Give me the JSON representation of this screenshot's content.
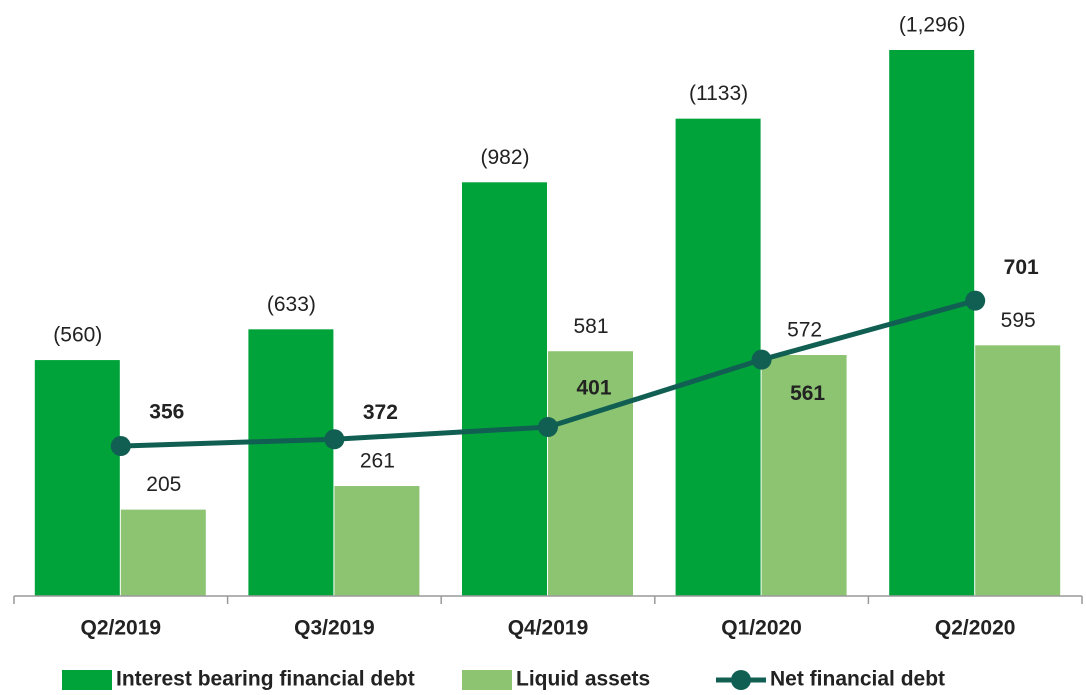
{
  "chart_data": {
    "type": "bar",
    "categories": [
      "Q2/2019",
      "Q3/2019",
      "Q4/2019",
      "Q1/2020",
      "Q2/2020"
    ],
    "series": [
      {
        "name": "Interest bearing financial debt",
        "type": "bar",
        "color": "#00a33a",
        "values": [
          560,
          633,
          982,
          1133,
          1296
        ],
        "value_labels": [
          "(560)",
          "(633)",
          "(982)",
          "(1133)",
          "(1,296)"
        ]
      },
      {
        "name": "Liquid assets",
        "type": "bar",
        "color": "#8cc472",
        "values": [
          205,
          261,
          581,
          572,
          595
        ]
      },
      {
        "name": "Net financial debt",
        "type": "line",
        "color": "#115f52",
        "values": [
          356,
          372,
          401,
          561,
          701
        ]
      }
    ]
  }
}
